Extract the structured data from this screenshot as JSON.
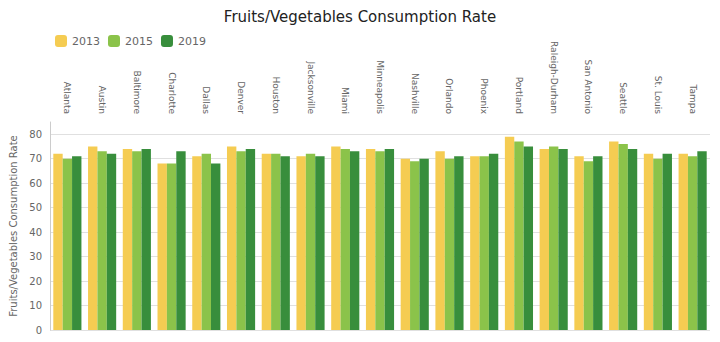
{
  "chart_data": {
    "type": "bar",
    "title": "Fruits/Vegetables Consumption Rate",
    "ylabel": "Fruits/Vegetables Consumption Rate",
    "categories": [
      "Atlanta",
      "Austin",
      "Baltimore",
      "Charlotte",
      "Dallas",
      "Denver",
      "Houston",
      "Jacksonville",
      "Miami",
      "Minneapolis",
      "Nashville",
      "Orlando",
      "Phoenix",
      "Portland",
      "Raleigh-Durham",
      "San Antonio",
      "Seattle",
      "St. Louis",
      "Tampa"
    ],
    "series": [
      {
        "name": "2013",
        "color": "#F5CC52",
        "values": [
          72,
          75,
          74,
          68,
          71,
          75,
          72,
          71,
          75,
          74,
          70,
          73,
          71,
          79,
          74,
          71,
          77,
          72,
          72
        ]
      },
      {
        "name": "2015",
        "color": "#8BC34A",
        "values": [
          70,
          73,
          73,
          68,
          72,
          73,
          72,
          72,
          74,
          73,
          69,
          70,
          71,
          77,
          75,
          69,
          76,
          70,
          71
        ]
      },
      {
        "name": "2019",
        "color": "#388E3C",
        "values": [
          71,
          72,
          74,
          73,
          68,
          74,
          71,
          71,
          73,
          74,
          70,
          71,
          72,
          75,
          74,
          71,
          74,
          72,
          73
        ]
      }
    ],
    "ylim": [
      0,
      85
    ],
    "yticks": [
      0,
      10,
      20,
      30,
      40,
      50,
      60,
      70,
      80
    ],
    "grid": true,
    "legend": "upper left"
  }
}
